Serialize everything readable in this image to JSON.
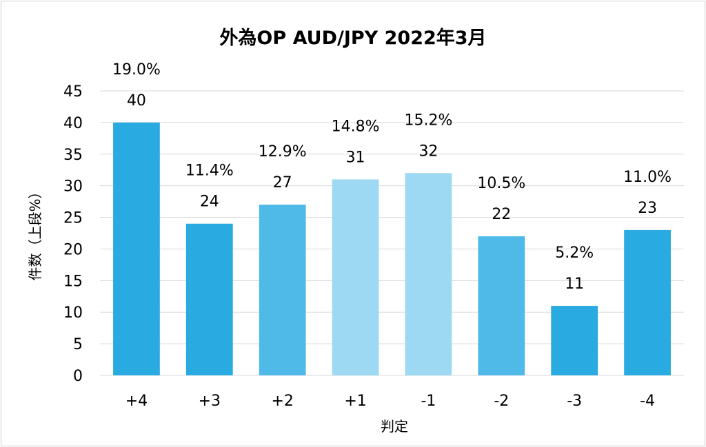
{
  "chart_data": {
    "type": "bar",
    "title": "外為OP AUD/JPY 2022年3月",
    "xlabel": "判定",
    "ylabel": "件数（上段%）",
    "categories": [
      "+4",
      "+3",
      "+2",
      "+1",
      "-1",
      "-2",
      "-3",
      "-4"
    ],
    "values": [
      40,
      24,
      27,
      31,
      32,
      22,
      11,
      23
    ],
    "percent_labels": [
      "19.0%",
      "11.4%",
      "12.9%",
      "14.8%",
      "15.2%",
      "10.5%",
      "5.2%",
      "11.0%"
    ],
    "bar_colors": [
      "#29abe2",
      "#29abe2",
      "#4fbae8",
      "#9dd9f3",
      "#9dd9f3",
      "#4fbae8",
      "#29abe2",
      "#29abe2"
    ],
    "ylim": [
      0,
      45
    ],
    "yticks": [
      0,
      5,
      10,
      15,
      20,
      25,
      30,
      35,
      40,
      45
    ],
    "grid": true,
    "legend": "none"
  }
}
